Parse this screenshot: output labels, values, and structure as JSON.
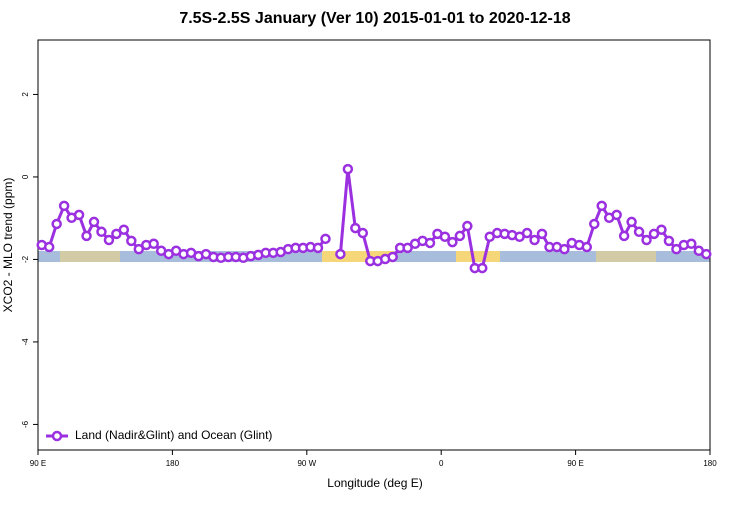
{
  "chart_data": {
    "type": "line",
    "title": "7.5S-2.5S January (Ver 10)   2015-01-01 to 2020-12-18",
    "x_label": "Longitude (deg E)",
    "y_label": "XCO2 - MLO trend (ppm)",
    "xlim": [
      90,
      540
    ],
    "xticks": [
      {
        "value": 90,
        "label": "90 E"
      },
      {
        "value": 180,
        "label": "180"
      },
      {
        "value": 270,
        "label": "90 W"
      },
      {
        "value": 360,
        "label": "0"
      },
      {
        "value": 450,
        "label": "90 E"
      },
      {
        "value": 540,
        "label": "180"
      }
    ],
    "ylim": [
      -6.62,
      3.32
    ],
    "yticks": [
      2,
      0,
      -2,
      -4,
      -6
    ],
    "legend": "bottom-left",
    "x": [
      92.5,
      97.5,
      102.5,
      107.5,
      112.5,
      117.5,
      122.5,
      127.5,
      132.5,
      137.5,
      142.5,
      147.5,
      152.5,
      157.5,
      162.5,
      167.5,
      172.5,
      177.5,
      182.5,
      187.5,
      192.5,
      197.5,
      202.5,
      207.5,
      212.5,
      217.5,
      222.5,
      227.5,
      232.5,
      237.5,
      242.5,
      247.5,
      252.5,
      257.5,
      262.5,
      267.5,
      272.5,
      277.5,
      282.5,
      287.5,
      292.5,
      297.5,
      302.5,
      307.5,
      312.5,
      317.5,
      322.5,
      327.5,
      332.5,
      337.5,
      342.5,
      347.5,
      352.5,
      357.5,
      362.5,
      367.5,
      372.5,
      377.5,
      382.5,
      387.5,
      392.5,
      397.5,
      402.5,
      407.5,
      412.5,
      417.5,
      422.5,
      427.5,
      432.5,
      437.5,
      442.5,
      447.5,
      452.5,
      457.5,
      462.5,
      467.5,
      472.5,
      477.5,
      482.5,
      487.5,
      492.5,
      497.5,
      502.5,
      507.5,
      512.5,
      517.5,
      522.5,
      527.5,
      532.5,
      537.5
    ],
    "series": [
      {
        "name": "Land (Nadir&Glint) and Ocean (Glint)",
        "color": "#9b30e0",
        "values": [
          -1.65,
          -1.7,
          -1.14,
          -0.7,
          -0.99,
          -0.92,
          -1.43,
          -1.09,
          -1.33,
          -1.53,
          -1.38,
          -1.28,
          -1.55,
          -1.75,
          -1.65,
          -1.62,
          -1.79,
          -1.87,
          -1.79,
          -1.87,
          -1.84,
          -1.92,
          -1.87,
          -1.94,
          -1.96,
          -1.94,
          -1.94,
          -1.96,
          -1.92,
          -1.89,
          -1.84,
          -1.84,
          -1.82,
          -1.75,
          -1.72,
          -1.72,
          -1.7,
          -1.72,
          -1.5,
          null,
          -1.87,
          0.19,
          -1.24,
          -1.36,
          -2.04,
          -2.04,
          -1.99,
          -1.94,
          -1.72,
          -1.72,
          -1.62,
          -1.55,
          -1.6,
          -1.38,
          -1.45,
          -1.58,
          -1.43,
          -1.19,
          -2.21,
          -2.21,
          -1.45,
          -1.36,
          -1.38,
          -1.41,
          -1.45,
          -1.36,
          -1.53,
          -1.38,
          -1.7,
          -1.7,
          -1.75,
          -1.6,
          -1.65,
          -1.7,
          -1.14,
          -0.7,
          -0.99,
          -0.92,
          -1.43,
          -1.09,
          -1.33,
          -1.53,
          -1.38,
          -1.28,
          -1.55,
          -1.75,
          -1.65,
          -1.62,
          -1.79,
          -1.87
        ]
      }
    ]
  }
}
